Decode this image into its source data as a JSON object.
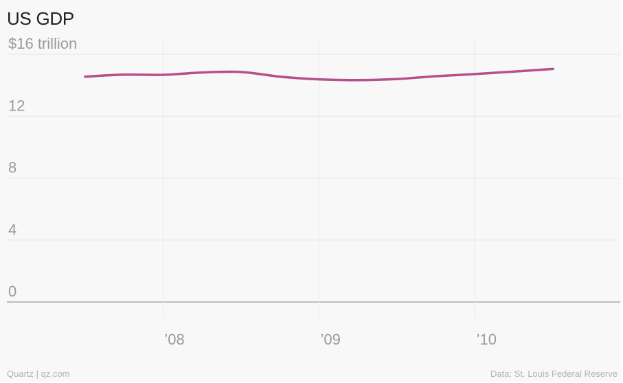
{
  "title": "US GDP",
  "source_left": "Quartz | qz.com",
  "source_right": "Data: St. Louis Federal Reserve",
  "colors": {
    "line": "#b5508a",
    "grid": "#e6e6e6",
    "baseline": "#bdbdbd",
    "text_muted": "#9a9a9a"
  },
  "chart_data": {
    "type": "line",
    "title": "US GDP",
    "xlabel": "",
    "ylabel": "",
    "grid": true,
    "ylim": [
      0,
      16
    ],
    "xlim": [
      2007.25,
      2010.75
    ],
    "y_ticks": [
      {
        "value": 16,
        "label": "$16 trillion"
      },
      {
        "value": 12,
        "label": "12"
      },
      {
        "value": 8,
        "label": "8"
      },
      {
        "value": 4,
        "label": "4"
      },
      {
        "value": 0,
        "label": "0"
      }
    ],
    "x_ticks": [
      {
        "value": 2008,
        "label": "’08"
      },
      {
        "value": 2009,
        "label": "’09"
      },
      {
        "value": 2010,
        "label": "’10"
      }
    ],
    "series": [
      {
        "x": [
          "2007-07-01",
          "2007-10-01",
          "2008-01-01",
          "2008-04-01",
          "2008-07-01",
          "2008-10-01",
          "2009-01-01",
          "2009-04-01",
          "2009-07-01",
          "2009-10-01",
          "2010-01-01",
          "2010-04-01",
          "2010-07-01"
        ],
        "values": [
          14.55,
          14.68,
          14.67,
          14.82,
          14.85,
          14.55,
          14.38,
          14.33,
          14.4,
          14.58,
          14.72,
          14.88,
          15.05
        ]
      }
    ]
  }
}
